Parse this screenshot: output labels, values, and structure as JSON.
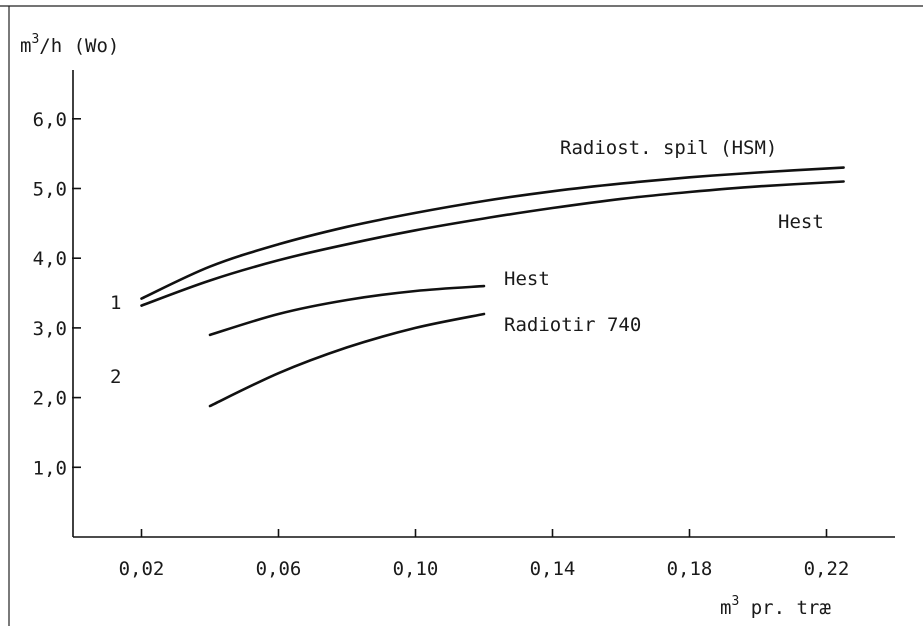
{
  "chart_data": {
    "type": "line",
    "ylabel_base": "m",
    "ylabel_sup": "3",
    "ylabel_rest": "/h (Wo)",
    "xlabel_base": "m",
    "xlabel_sup": "3",
    "xlabel_rest": " pr. træ",
    "xlim": [
      0,
      0.24
    ],
    "ylim": [
      0,
      6.7
    ],
    "x_ticks": [
      {
        "value": 0.02,
        "label": "0,02"
      },
      {
        "value": 0.06,
        "label": "0,06"
      },
      {
        "value": 0.1,
        "label": "0,10"
      },
      {
        "value": 0.14,
        "label": "0,14"
      },
      {
        "value": 0.18,
        "label": "0,18"
      },
      {
        "value": 0.22,
        "label": "0,22"
      }
    ],
    "y_ticks": [
      {
        "value": 1.0,
        "label": "1,0"
      },
      {
        "value": 2.0,
        "label": "2,0"
      },
      {
        "value": 3.0,
        "label": "3,0"
      },
      {
        "value": 4.0,
        "label": "4,0"
      },
      {
        "value": 5.0,
        "label": "5,0"
      },
      {
        "value": 6.0,
        "label": "6,0"
      }
    ],
    "series": [
      {
        "name": "Radiost. spil (HSM)",
        "x": [
          0.02,
          0.04,
          0.06,
          0.08,
          0.1,
          0.12,
          0.14,
          0.16,
          0.18,
          0.2,
          0.225
        ],
        "y": [
          3.42,
          3.88,
          4.2,
          4.45,
          4.65,
          4.82,
          4.96,
          5.07,
          5.16,
          5.23,
          5.3
        ]
      },
      {
        "name": "Hest",
        "x": [
          0.02,
          0.04,
          0.06,
          0.08,
          0.1,
          0.12,
          0.14,
          0.16,
          0.18,
          0.2,
          0.225
        ],
        "y": [
          3.32,
          3.68,
          3.97,
          4.2,
          4.4,
          4.57,
          4.72,
          4.85,
          4.95,
          5.03,
          5.1
        ]
      },
      {
        "name": "Hest",
        "x": [
          0.04,
          0.06,
          0.08,
          0.1,
          0.12
        ],
        "y": [
          2.9,
          3.2,
          3.4,
          3.53,
          3.6
        ]
      },
      {
        "name": "Radiotir 740",
        "x": [
          0.04,
          0.06,
          0.08,
          0.1,
          0.12
        ],
        "y": [
          1.88,
          2.35,
          2.72,
          3.0,
          3.2
        ]
      }
    ],
    "side_labels": [
      "1",
      "2"
    ]
  }
}
